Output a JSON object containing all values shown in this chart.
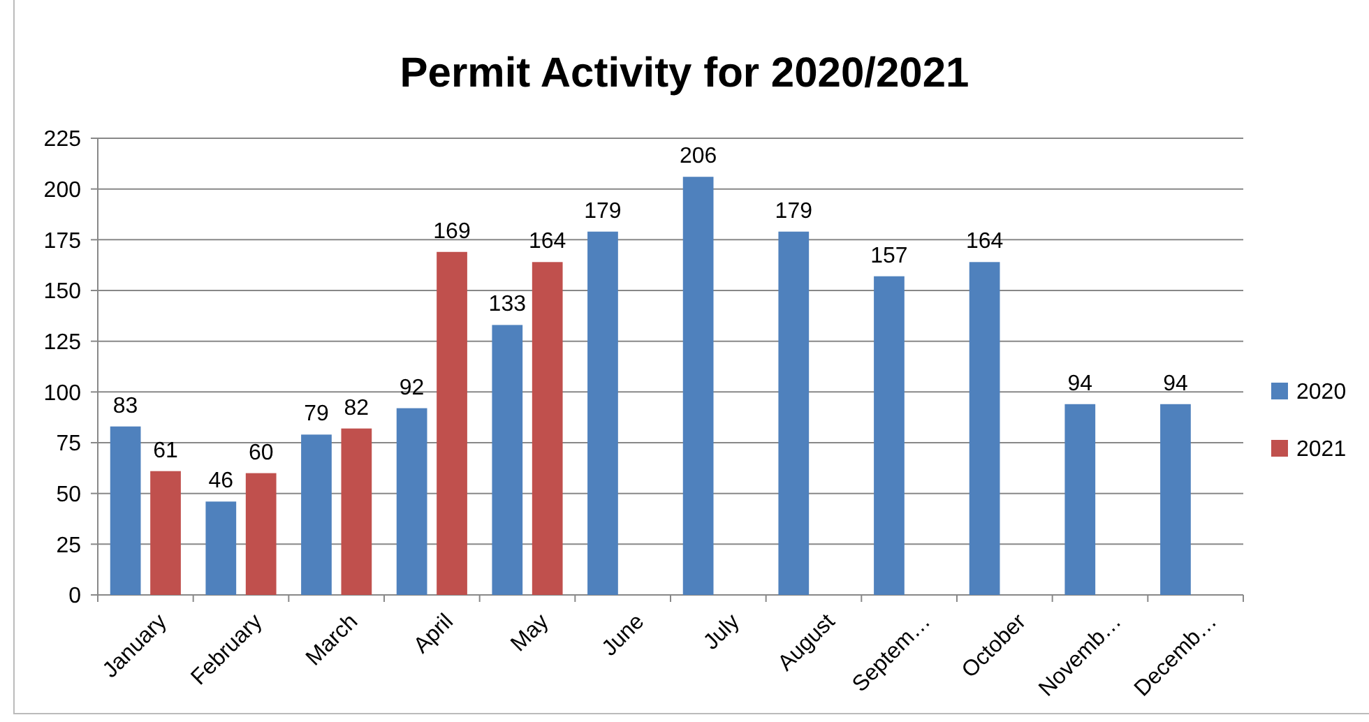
{
  "chart_data": {
    "type": "bar",
    "title": "Permit Activity for 2020/2021",
    "categories": [
      "January",
      "February",
      "March",
      "April",
      "May",
      "June",
      "July",
      "August",
      "Septem…",
      "October",
      "Novemb…",
      "Decemb…"
    ],
    "series": [
      {
        "name": "2020",
        "color": "#4f81bd",
        "values": [
          83,
          46,
          79,
          92,
          133,
          179,
          206,
          179,
          157,
          164,
          94,
          94
        ]
      },
      {
        "name": "2021",
        "color": "#c0504d",
        "values": [
          61,
          60,
          82,
          169,
          164,
          null,
          null,
          null,
          null,
          null,
          null,
          null
        ]
      }
    ],
    "ylim": [
      0,
      225
    ],
    "yticks": [
      0,
      25,
      50,
      75,
      100,
      125,
      150,
      175,
      200,
      225
    ],
    "grid": "y",
    "legend": "right",
    "data_labels": true
  }
}
